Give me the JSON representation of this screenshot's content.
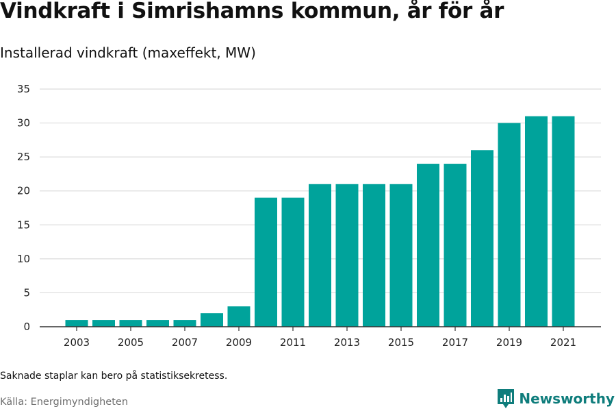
{
  "title": "Vindkraft i Simrishamns kommun, år för år",
  "subtitle": "Installerad vindkraft (maxeffekt, MW)",
  "note": "Saknade staplar kan bero på statistiksekretess.",
  "source": "Källa: Energimyndigheten",
  "brand": {
    "name": "Newsworthy",
    "icon": "newsworthy-logo-icon",
    "color": "#0f7d7c"
  },
  "colors": {
    "bar": "#00a39b",
    "grid": "#dcdcdc",
    "axis": "#333333"
  },
  "chart_data": {
    "type": "bar",
    "title": "Vindkraft i Simrishamns kommun, år för år",
    "subtitle": "Installerad vindkraft (maxeffekt, MW)",
    "xlabel": "",
    "ylabel": "",
    "categories": [
      "2003",
      "2004",
      "2005",
      "2006",
      "2007",
      "2008",
      "2009",
      "2010",
      "2011",
      "2012",
      "2013",
      "2014",
      "2015",
      "2016",
      "2017",
      "2018",
      "2019",
      "2020",
      "2021"
    ],
    "values": [
      1,
      1,
      1,
      1,
      1,
      2,
      3,
      19,
      19,
      21,
      21,
      21,
      21,
      24,
      24,
      26,
      30,
      31,
      31
    ],
    "x_tick_labels": [
      "2003",
      "2005",
      "2007",
      "2009",
      "2011",
      "2013",
      "2015",
      "2017",
      "2019",
      "2021"
    ],
    "y_ticks": [
      "0",
      "5",
      "10",
      "15",
      "20",
      "25",
      "30",
      "35"
    ],
    "ylim": [
      0,
      35
    ],
    "grid": true,
    "legend": "none"
  }
}
